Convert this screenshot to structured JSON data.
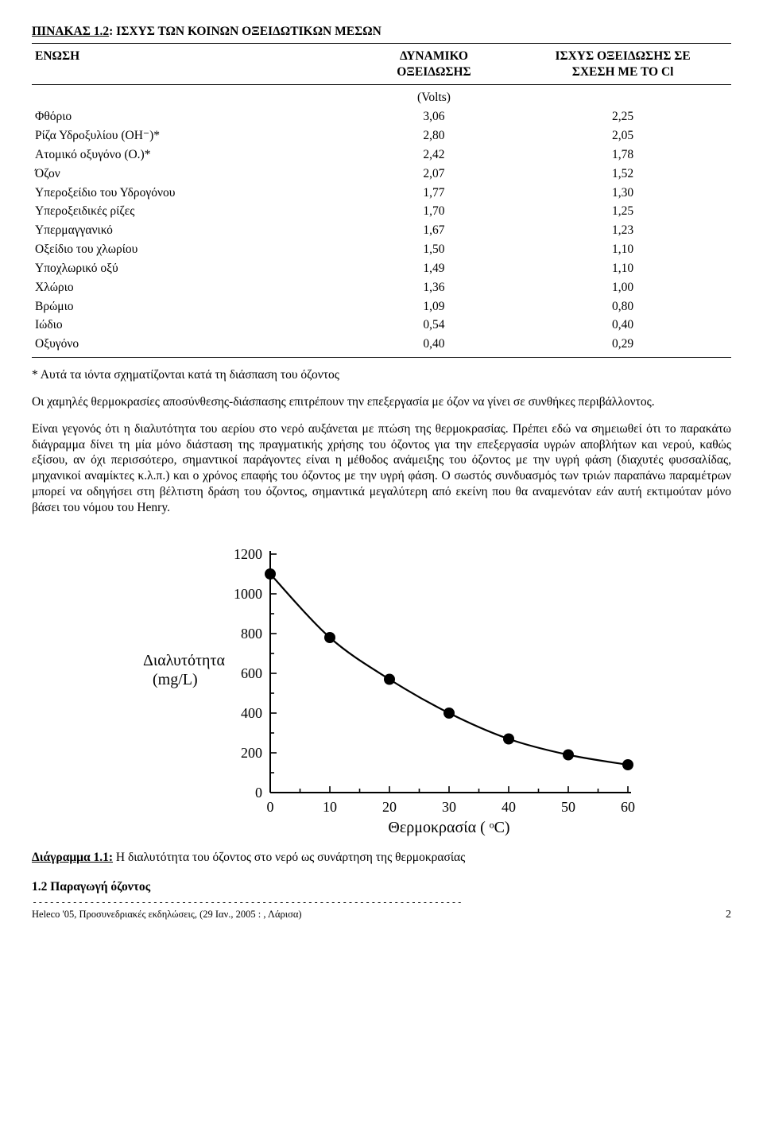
{
  "title_prefix": "ΠΙΝΑΚΑΣ 1.2",
  "title_rest": ": ΙΣΧΥΣ ΤΩΝ ΚΟΙΝΩΝ ΟΞΕΙΔΩΤΙΚΩΝ ΜΕΣΩΝ",
  "columns": {
    "c1": "ΕΝΩΣΗ",
    "c2a": "ΔΥΝΑΜΙΚΟ",
    "c2b": "ΟΞΕΙΔΩΣΗΣ",
    "c3a": "ΙΣΧΥΣ ΟΞΕΙΔΩΣΗΣ ΣΕ",
    "c3b": "ΣΧΕΣΗ ΜΕ ΤΟ Cl",
    "units": "(Volts)"
  },
  "rows": [
    {
      "n": "Φθόριο",
      "v": "3,06",
      "s": "2,25"
    },
    {
      "n": "Ρίζα Υδροξυλίου (OH⁻)*",
      "v": "2,80",
      "s": "2,05"
    },
    {
      "n": "Ατομικό οξυγόνο (O.)*",
      "v": "2,42",
      "s": "1,78"
    },
    {
      "n": "Όζον",
      "v": "2,07",
      "s": "1,52"
    },
    {
      "n": "Υπεροξείδιο του Υδρογόνου",
      "v": "1,77",
      "s": "1,30"
    },
    {
      "n": "Υπεροξειδικές ρίζες",
      "v": "1,70",
      "s": "1,25"
    },
    {
      "n": "Υπερμαγγανικό",
      "v": "1,67",
      "s": "1,23"
    },
    {
      "n": "Οξείδιο του χλωρίου",
      "v": "1,50",
      "s": "1,10"
    },
    {
      "n": "Υποχλωρικό οξύ",
      "v": "1,49",
      "s": "1,10"
    },
    {
      "n": "Χλώριο",
      "v": "1,36",
      "s": "1,00"
    },
    {
      "n": "Βρώμιο",
      "v": "1,09",
      "s": "0,80"
    },
    {
      "n": "Ιώδιο",
      "v": "0,54",
      "s": "0,40"
    },
    {
      "n": "Οξυγόνο",
      "v": "0,40",
      "s": "0,29"
    }
  ],
  "footnote": "* Αυτά τα ιόντα σχηματίζονται κατά τη διάσπαση του όζοντος",
  "para1": "Οι χαμηλές θερμοκρασίες αποσύνθεσης-διάσπασης επιτρέπουν την επεξεργασία με όζον να γίνει σε συνθήκες περιβάλλοντος.",
  "para2": "Είναι γεγονός ότι η διαλυτότητα του αερίου στο νερό αυξάνεται με πτώση της θερμοκρασίας. Πρέπει εδώ να σημειωθεί ότι το παρακάτω διάγραμμα δίνει τη μία μόνο διάσταση της πραγματικής χρήσης του όζοντος για την επεξεργασία υγρών αποβλήτων και νερού, καθώς εξίσου, αν όχι περισσότερο, σημαντικοί παράγοντες είναι η μέθοδος ανάμειξης του όζοντος με την υγρή φάση (διαχυτές φυσσαλίδας, μηχανικοί αναμίκτες κ.λ.π.) και ο χρόνος επαφής του όζοντος με την υγρή φάση. Ο σωστός συνδυασμός των τριών παραπάνω παραμέτρων μπορεί να οδηγήσει στη βέλτιστη δράση του όζοντος, σημαντικά μεγαλύτερη από εκείνη που θα αναμενόταν εάν αυτή εκτιμούταν μόνο βάσει του νόμου του Henry.",
  "chart": {
    "type": "line-scatter",
    "ylabel_a": "Διαλυτότητα",
    "ylabel_b": "(mg/L)",
    "xlabel": "Θερμοκρασία ( ᵒC)",
    "xlim": [
      0,
      60
    ],
    "xtick_step": 10,
    "ylim": [
      0,
      1200
    ],
    "ytick_step": 200,
    "minor_x_step": 5,
    "minor_y_step": 100,
    "points": [
      {
        "x": 0,
        "y": 1100
      },
      {
        "x": 10,
        "y": 780
      },
      {
        "x": 20,
        "y": 570
      },
      {
        "x": 30,
        "y": 400
      },
      {
        "x": 40,
        "y": 270
      },
      {
        "x": 50,
        "y": 190
      },
      {
        "x": 60,
        "y": 140
      }
    ],
    "line_color": "#000000",
    "marker_color": "#000000",
    "marker_radius": 7,
    "line_width": 2.2,
    "axis_width": 2,
    "tick_len_major": 8,
    "tick_len_minor": 5,
    "label_fontsize": 20,
    "tick_fontsize": 18,
    "background_color": "#ffffff"
  },
  "caption_prefix": "Διάγραμμα 1.1:",
  "caption_rest": " Η διαλυτότητα του όζοντος στο νερό ως συνάρτηση της θερμοκρασίας",
  "section_heading": "1.2 Παραγωγή όζοντος",
  "footer": "Heleco '05, Προσυνεδριακές εκδηλώσεις, (29 Ιαν., 2005 : , Λάρισα)",
  "page_number": "2"
}
